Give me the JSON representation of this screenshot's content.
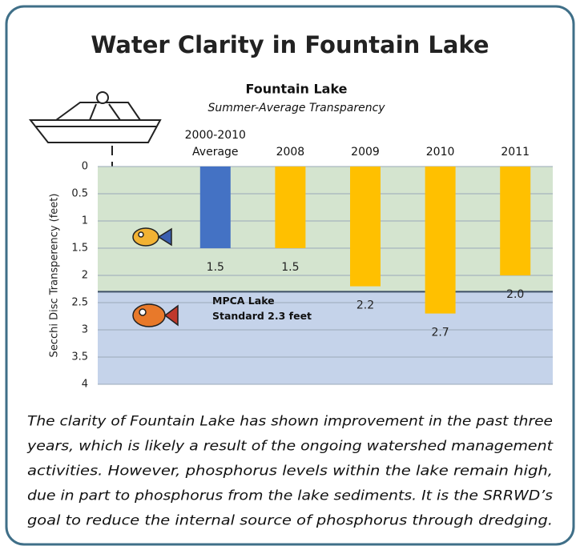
{
  "title": "Water Clarity in Fountain Lake",
  "chart_data": {
    "type": "bar",
    "title": "Fountain Lake",
    "subtitle": "Summer-Average Transparency",
    "y_label": "Secchi Disc Transperency (feet)",
    "categories": [
      "2000-2010\nAverage",
      "2008",
      "2009",
      "2010",
      "2011"
    ],
    "values": [
      1.5,
      1.5,
      2.2,
      2.7,
      2.0
    ],
    "value_labels": [
      "1.5",
      "1.5",
      "2.2",
      "2.7",
      "2.0"
    ],
    "colors": [
      "#4472c4",
      "#ffc000",
      "#ffc000",
      "#ffc000",
      "#ffc000"
    ],
    "ylim": [
      0,
      4
    ],
    "yticks": [
      0,
      0.5,
      1,
      1.5,
      2,
      2.5,
      3,
      3.5,
      4
    ],
    "y_inverted": true,
    "grid": true,
    "standard": {
      "value": 2.3,
      "label": "MPCA Lake\nStandard 2.3 feet"
    }
  },
  "caption": [
    "The clarity of Fountain Lake has shown improvement in the past three",
    "years, which is likely a result of the ongoing watershed management",
    "activities. However, phosphorus levels within the lake remain high,",
    "due in part to phosphorus from the lake sediments. It is the SRRWD’s",
    "goal to reduce the internal source of phosphorus through dredging."
  ]
}
